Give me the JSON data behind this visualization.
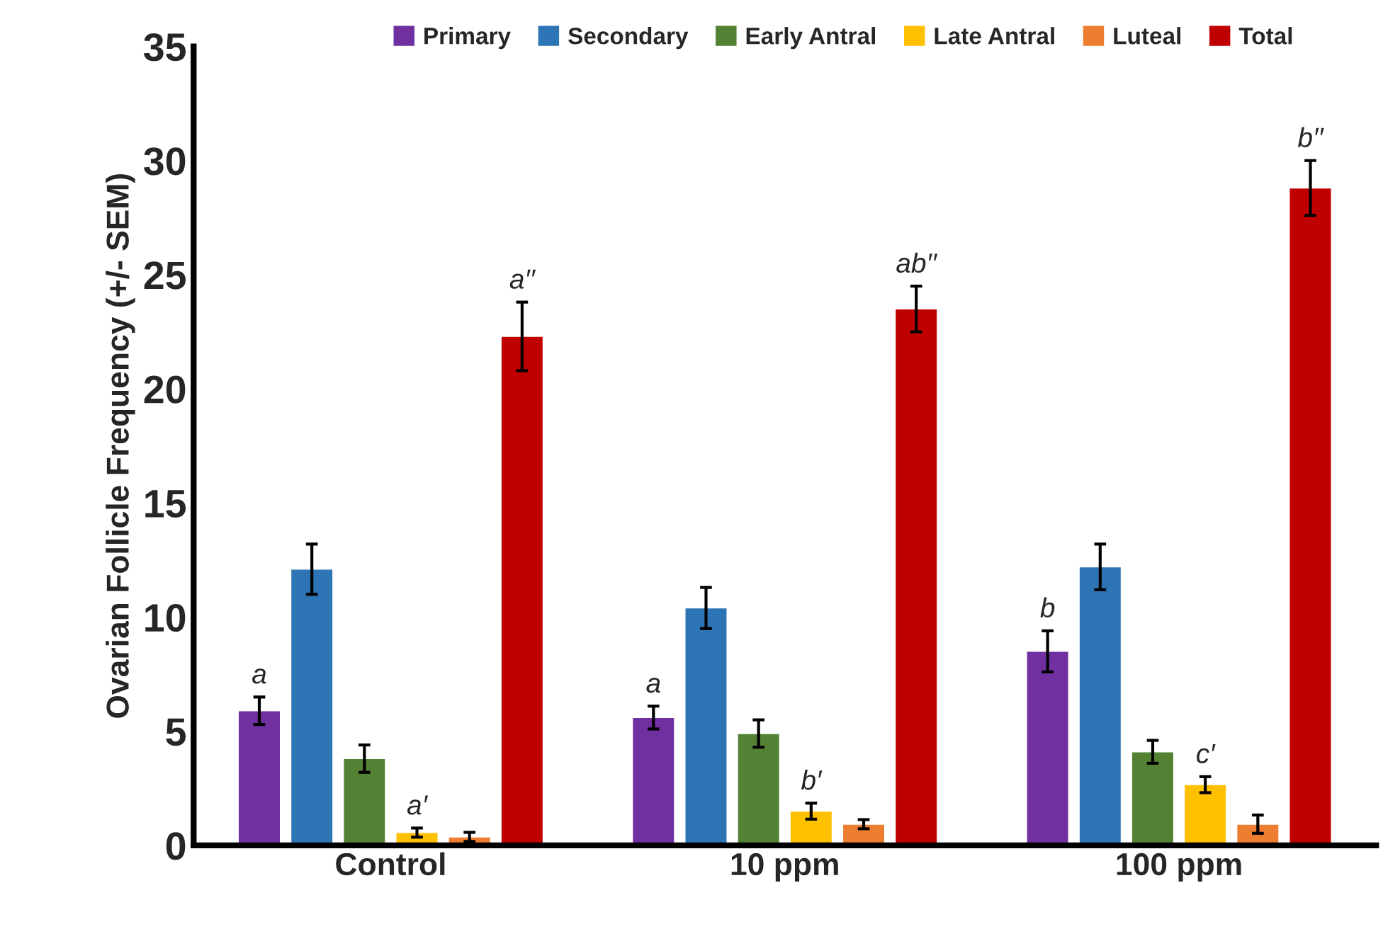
{
  "chart_data": {
    "type": "bar",
    "ylabel": "Ovarian Follicle Frequency (+/- SEM)",
    "categories": [
      "Control",
      "10 ppm",
      "100 ppm"
    ],
    "series": [
      {
        "name": "Primary",
        "color": "#7030a0",
        "values": [
          5.9,
          5.6,
          8.5
        ],
        "errors": [
          0.6,
          0.5,
          0.9
        ],
        "value_labels": [
          "a",
          "a",
          "b"
        ]
      },
      {
        "name": "Secondary",
        "color": "#2e75b6",
        "values": [
          12.1,
          10.4,
          12.2
        ],
        "errors": [
          1.1,
          0.9,
          1.0
        ]
      },
      {
        "name": "Early Antral",
        "color": "#548235",
        "values": [
          3.8,
          4.9,
          4.1
        ],
        "errors": [
          0.6,
          0.6,
          0.5
        ]
      },
      {
        "name": "Late Antral",
        "color": "#ffc000",
        "values": [
          0.56,
          1.5,
          2.66
        ],
        "errors": [
          0.2,
          0.35,
          0.35
        ],
        "value_labels": [
          "a′",
          "b′",
          "c′"
        ]
      },
      {
        "name": "Luteal",
        "color": "#ed7d31",
        "values": [
          0.37,
          0.93,
          0.93
        ],
        "errors": [
          0.2,
          0.2,
          0.4
        ]
      },
      {
        "name": "Total",
        "color": "#c00000",
        "values": [
          22.3,
          23.5,
          28.8
        ],
        "errors": [
          1.5,
          1.0,
          1.2
        ],
        "value_labels": [
          "a′′",
          "ab′′",
          "b′′"
        ]
      }
    ],
    "ylim": [
      0,
      35
    ],
    "yticks": [
      0,
      5,
      10,
      15,
      20,
      25,
      30,
      35
    ],
    "grid": false,
    "legend": "top"
  }
}
